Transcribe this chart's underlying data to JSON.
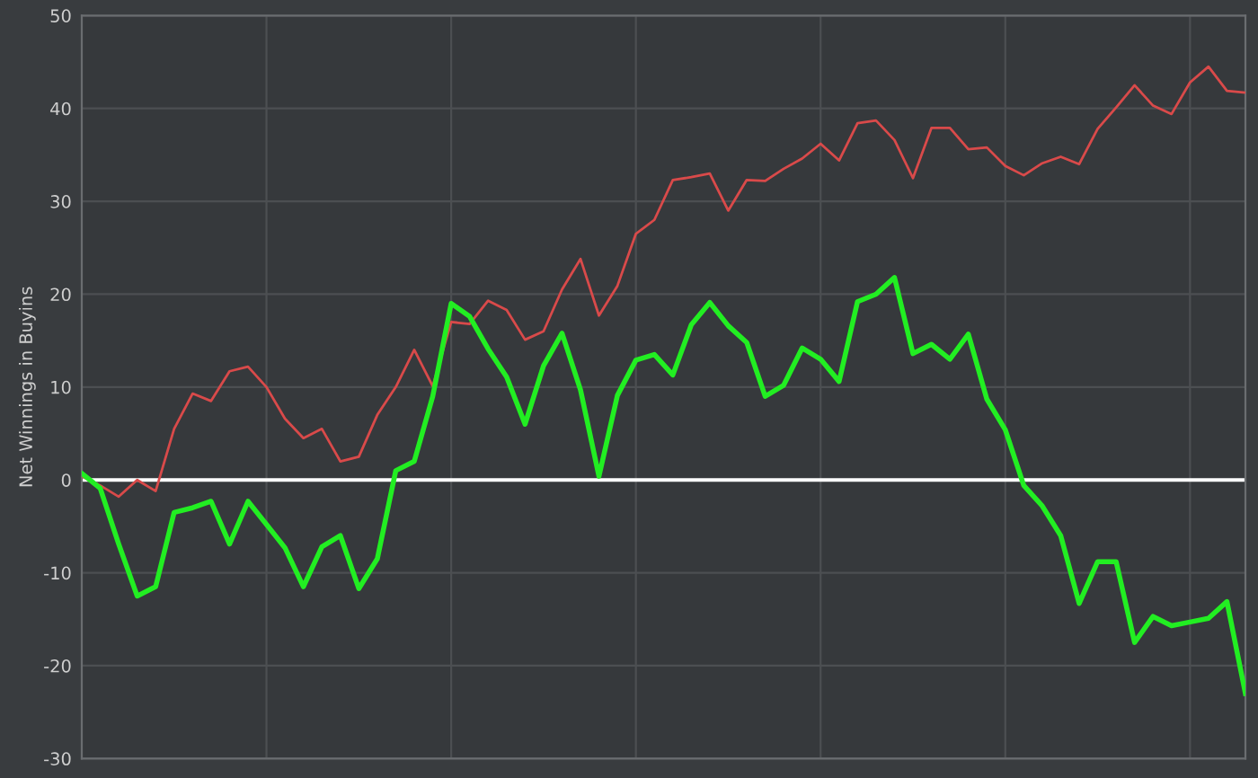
{
  "chart_data": {
    "type": "line",
    "ylabel": "Net Winnings in Buyins",
    "categories": [
      null,
      null,
      null,
      null,
      null,
      null,
      null,
      null,
      null,
      null,
      null,
      null,
      null,
      null,
      null,
      null,
      null,
      null,
      null,
      null,
      null,
      null,
      null,
      null,
      null,
      null,
      null,
      null,
      null,
      null,
      null,
      null,
      null,
      null,
      null,
      null,
      null,
      null,
      null,
      null,
      null,
      null,
      null,
      null,
      null,
      null,
      null,
      null,
      null,
      null,
      null,
      null,
      null,
      null,
      null,
      null,
      null,
      null,
      null,
      null,
      null,
      null,
      null,
      null
    ],
    "ylim": [
      -30,
      50
    ],
    "yticks": [
      -30,
      -20,
      -10,
      0,
      10,
      20,
      30,
      40,
      50
    ],
    "tick_labels": "y",
    "grid": true,
    "marker": "none",
    "line_style": "solid",
    "ref_lines": [
      {
        "axis": "y",
        "value": 0,
        "color": "#ffffff"
      }
    ],
    "series": [
      {
        "color": "#d94a4a",
        "values": [
          0.4,
          -0.6,
          -1.8,
          0.0,
          -1.2,
          5.5,
          9.3,
          8.5,
          11.7,
          12.2,
          10.0,
          6.6,
          4.5,
          5.5,
          2.0,
          2.5,
          7.0,
          10.0,
          14.0,
          10.1,
          17.0,
          16.8,
          19.3,
          18.3,
          15.1,
          16.0,
          20.5,
          23.8,
          17.7,
          20.9,
          26.5,
          28.0,
          32.3,
          32.6,
          33.0,
          29.0,
          32.3,
          32.2,
          33.5,
          34.6,
          36.2,
          34.4,
          38.4,
          38.7,
          36.6,
          32.5,
          37.9,
          37.9,
          35.6,
          35.8,
          33.8,
          32.8,
          34.1,
          34.8,
          34.0,
          37.8,
          40.1,
          42.5,
          40.3,
          39.4,
          42.8,
          44.5,
          41.9,
          41.7
        ]
      },
      {
        "color": "#22ee22",
        "values": [
          0.7,
          -0.9,
          -6.9,
          -12.5,
          -11.5,
          -3.5,
          -3.0,
          -2.3,
          -6.9,
          -2.3,
          -4.8,
          -7.3,
          -11.5,
          -7.2,
          -6.0,
          -11.7,
          -8.5,
          1.0,
          2.0,
          9.0,
          19.0,
          17.6,
          14.1,
          11.1,
          6.0,
          12.3,
          15.8,
          9.7,
          0.4,
          9.1,
          12.9,
          13.5,
          11.3,
          16.7,
          19.1,
          16.6,
          14.8,
          9.0,
          10.2,
          14.2,
          13.0,
          10.6,
          19.2,
          20.0,
          21.8,
          13.6,
          14.6,
          13.0,
          15.7,
          8.7,
          5.4,
          -0.6,
          -2.8,
          -6.0,
          -13.3,
          -8.8,
          -8.8,
          -17.5,
          -14.7,
          -15.7,
          -15.3,
          -14.9,
          -13.1,
          -23.0
        ]
      }
    ]
  }
}
